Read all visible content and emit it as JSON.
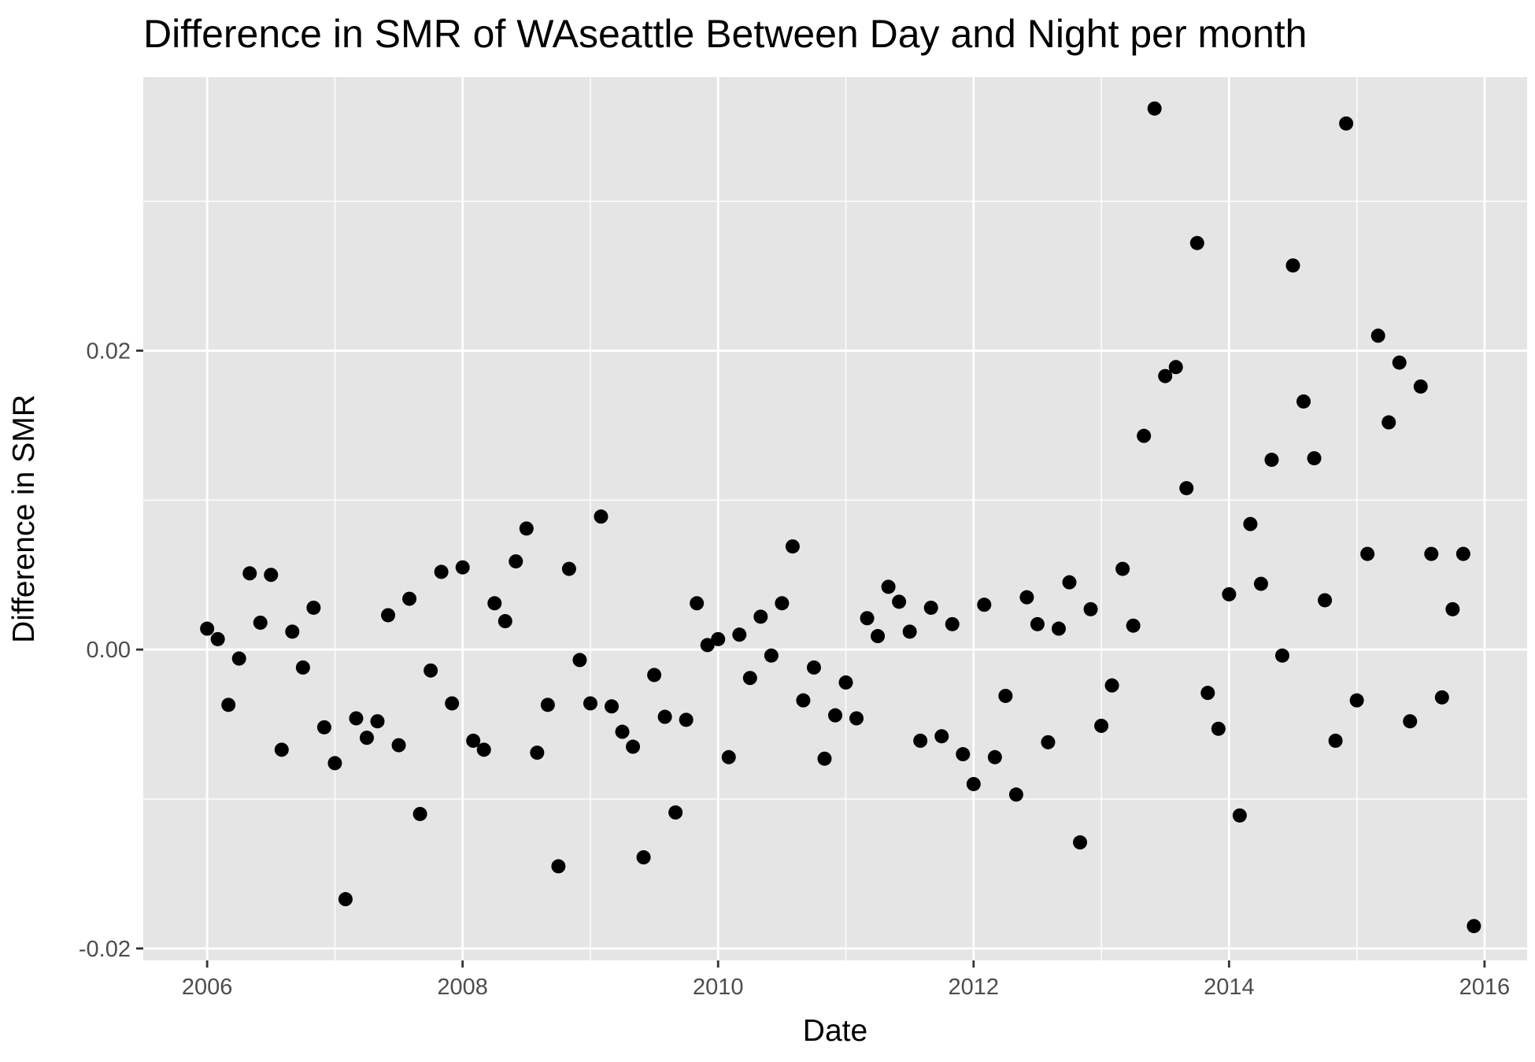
{
  "chart_data": {
    "type": "scatter",
    "title": "Difference in SMR of WAseattle Between Day and Night per month",
    "xlabel": "Date",
    "ylabel": "Difference in SMR",
    "x_ticks": [
      "2006",
      "2008",
      "2010",
      "2012",
      "2014",
      "2016"
    ],
    "y_ticks": [
      "-0.02",
      "0.00",
      "0.02"
    ],
    "xlim": [
      "2005-07",
      "2016-05"
    ],
    "ylim": [
      -0.0208,
      0.0383
    ],
    "grid": true,
    "background": "#e5e5e5",
    "grid_color": "#ffffff",
    "point_color": "#000000",
    "points": [
      {
        "x": "2006-01",
        "y": 0.0014
      },
      {
        "x": "2006-02",
        "y": 0.0007
      },
      {
        "x": "2006-03",
        "y": -0.0037
      },
      {
        "x": "2006-04",
        "y": -0.0006
      },
      {
        "x": "2006-05",
        "y": 0.0051
      },
      {
        "x": "2006-06",
        "y": 0.0018
      },
      {
        "x": "2006-07",
        "y": 0.005
      },
      {
        "x": "2006-08",
        "y": -0.0067
      },
      {
        "x": "2006-09",
        "y": 0.0012
      },
      {
        "x": "2006-10",
        "y": -0.0012
      },
      {
        "x": "2006-11",
        "y": 0.0028
      },
      {
        "x": "2006-12",
        "y": -0.0052
      },
      {
        "x": "2007-01",
        "y": -0.0076
      },
      {
        "x": "2007-02",
        "y": -0.0167
      },
      {
        "x": "2007-03",
        "y": -0.0046
      },
      {
        "x": "2007-04",
        "y": -0.0059
      },
      {
        "x": "2007-05",
        "y": -0.0048
      },
      {
        "x": "2007-06",
        "y": 0.0023
      },
      {
        "x": "2007-07",
        "y": -0.0064
      },
      {
        "x": "2007-08",
        "y": 0.0034
      },
      {
        "x": "2007-09",
        "y": -0.011
      },
      {
        "x": "2007-10",
        "y": -0.0014
      },
      {
        "x": "2007-11",
        "y": 0.0052
      },
      {
        "x": "2007-12",
        "y": -0.0036
      },
      {
        "x": "2008-01",
        "y": 0.0055
      },
      {
        "x": "2008-02",
        "y": -0.0061
      },
      {
        "x": "2008-03",
        "y": -0.0067
      },
      {
        "x": "2008-04",
        "y": 0.0031
      },
      {
        "x": "2008-05",
        "y": 0.0019
      },
      {
        "x": "2008-06",
        "y": 0.0059
      },
      {
        "x": "2008-07",
        "y": 0.0081
      },
      {
        "x": "2008-08",
        "y": -0.0069
      },
      {
        "x": "2008-09",
        "y": -0.0037
      },
      {
        "x": "2008-10",
        "y": -0.0145
      },
      {
        "x": "2008-11",
        "y": 0.0054
      },
      {
        "x": "2008-12",
        "y": -0.0007
      },
      {
        "x": "2009-01",
        "y": -0.0036
      },
      {
        "x": "2009-02",
        "y": 0.0089
      },
      {
        "x": "2009-03",
        "y": -0.0038
      },
      {
        "x": "2009-04",
        "y": -0.0055
      },
      {
        "x": "2009-05",
        "y": -0.0065
      },
      {
        "x": "2009-06",
        "y": -0.0139
      },
      {
        "x": "2009-07",
        "y": -0.0017
      },
      {
        "x": "2009-08",
        "y": -0.0045
      },
      {
        "x": "2009-09",
        "y": -0.0109
      },
      {
        "x": "2009-10",
        "y": -0.0047
      },
      {
        "x": "2009-11",
        "y": 0.0031
      },
      {
        "x": "2009-12",
        "y": 0.0003
      },
      {
        "x": "2010-01",
        "y": 0.0007
      },
      {
        "x": "2010-02",
        "y": -0.0072
      },
      {
        "x": "2010-03",
        "y": 0.001
      },
      {
        "x": "2010-04",
        "y": -0.0019
      },
      {
        "x": "2010-05",
        "y": 0.0022
      },
      {
        "x": "2010-06",
        "y": -0.0004
      },
      {
        "x": "2010-07",
        "y": 0.0031
      },
      {
        "x": "2010-08",
        "y": 0.0069
      },
      {
        "x": "2010-09",
        "y": -0.0034
      },
      {
        "x": "2010-10",
        "y": -0.0012
      },
      {
        "x": "2010-11",
        "y": -0.0073
      },
      {
        "x": "2010-12",
        "y": -0.0044
      },
      {
        "x": "2011-01",
        "y": -0.0022
      },
      {
        "x": "2011-02",
        "y": -0.0046
      },
      {
        "x": "2011-03",
        "y": 0.0021
      },
      {
        "x": "2011-04",
        "y": 0.0009
      },
      {
        "x": "2011-05",
        "y": 0.0042
      },
      {
        "x": "2011-06",
        "y": 0.0032
      },
      {
        "x": "2011-07",
        "y": 0.0012
      },
      {
        "x": "2011-08",
        "y": -0.0061
      },
      {
        "x": "2011-09",
        "y": 0.0028
      },
      {
        "x": "2011-10",
        "y": -0.0058
      },
      {
        "x": "2011-11",
        "y": 0.0017
      },
      {
        "x": "2011-12",
        "y": -0.007
      },
      {
        "x": "2012-01",
        "y": -0.009
      },
      {
        "x": "2012-02",
        "y": 0.003
      },
      {
        "x": "2012-03",
        "y": -0.0072
      },
      {
        "x": "2012-04",
        "y": -0.0031
      },
      {
        "x": "2012-05",
        "y": -0.0097
      },
      {
        "x": "2012-06",
        "y": 0.0035
      },
      {
        "x": "2012-07",
        "y": 0.0017
      },
      {
        "x": "2012-08",
        "y": -0.0062
      },
      {
        "x": "2012-09",
        "y": 0.0014
      },
      {
        "x": "2012-10",
        "y": 0.0045
      },
      {
        "x": "2012-11",
        "y": -0.0129
      },
      {
        "x": "2012-12",
        "y": 0.0027
      },
      {
        "x": "2013-01",
        "y": -0.0051
      },
      {
        "x": "2013-02",
        "y": -0.0024
      },
      {
        "x": "2013-03",
        "y": 0.0054
      },
      {
        "x": "2013-04",
        "y": 0.0016
      },
      {
        "x": "2013-05",
        "y": 0.0143
      },
      {
        "x": "2013-06",
        "y": 0.0362
      },
      {
        "x": "2013-07",
        "y": 0.0183
      },
      {
        "x": "2013-08",
        "y": 0.0189
      },
      {
        "x": "2013-09",
        "y": 0.0108
      },
      {
        "x": "2013-10",
        "y": 0.0272
      },
      {
        "x": "2013-11",
        "y": -0.0029
      },
      {
        "x": "2013-12",
        "y": -0.0053
      },
      {
        "x": "2014-01",
        "y": 0.0037
      },
      {
        "x": "2014-02",
        "y": -0.0111
      },
      {
        "x": "2014-03",
        "y": 0.0084
      },
      {
        "x": "2014-04",
        "y": 0.0044
      },
      {
        "x": "2014-05",
        "y": 0.0127
      },
      {
        "x": "2014-06",
        "y": -0.0004
      },
      {
        "x": "2014-07",
        "y": 0.0257
      },
      {
        "x": "2014-08",
        "y": 0.0166
      },
      {
        "x": "2014-09",
        "y": 0.0128
      },
      {
        "x": "2014-10",
        "y": 0.0033
      },
      {
        "x": "2014-11",
        "y": -0.0061
      },
      {
        "x": "2014-12",
        "y": 0.0352
      },
      {
        "x": "2015-01",
        "y": -0.0034
      },
      {
        "x": "2015-02",
        "y": 0.0064
      },
      {
        "x": "2015-03",
        "y": 0.021
      },
      {
        "x": "2015-04",
        "y": 0.0152
      },
      {
        "x": "2015-05",
        "y": 0.0192
      },
      {
        "x": "2015-06",
        "y": -0.0048
      },
      {
        "x": "2015-07",
        "y": 0.0176
      },
      {
        "x": "2015-08",
        "y": 0.0064
      },
      {
        "x": "2015-09",
        "y": -0.0032
      },
      {
        "x": "2015-10",
        "y": 0.0027
      },
      {
        "x": "2015-11",
        "y": 0.0064
      },
      {
        "x": "2015-12",
        "y": -0.0185
      }
    ]
  }
}
